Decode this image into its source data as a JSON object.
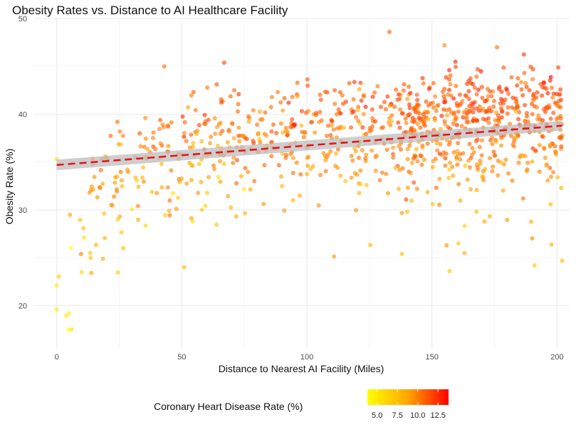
{
  "chart_data": {
    "type": "scatter",
    "title": "Obesity Rates vs. Distance to AI Healthcare Facility",
    "xlabel": "Distance to Nearest AI Facility (Miles)",
    "ylabel": "Obesity Rate (%)",
    "xlim": [
      -9,
      205
    ],
    "ylim": [
      15.5,
      50
    ],
    "xticks": [
      0,
      50,
      100,
      150,
      200
    ],
    "yticks": [
      20,
      30,
      40,
      50
    ],
    "grid": true,
    "color_legend": {
      "title": "Coronary Heart Disease Rate (%)",
      "position": "bottom",
      "range": [
        3.8,
        13.8
      ],
      "ticks": [
        "5.0",
        "7.5",
        "10.0",
        "12.5"
      ],
      "tick_values": [
        5.0,
        7.5,
        10.0,
        12.5
      ],
      "low_color": "#ffff00",
      "high_color": "#ff0000"
    },
    "trend_line": {
      "x": [
        0,
        202
      ],
      "y": [
        34.7,
        38.8
      ],
      "ci_halfwidth": [
        0.55,
        0.5
      ],
      "color": "#e8141a",
      "ci_color": "#bdbdbd",
      "style": "dashed"
    },
    "point_count": 1000,
    "points_note_sample": [
      {
        "x": 0,
        "y": 19.6,
        "c": 4.5
      },
      {
        "x": 0,
        "y": 22.1,
        "c": 4.6
      },
      {
        "x": 6,
        "y": 17.5,
        "c": 5.0
      },
      {
        "x": 43,
        "y": 45.0,
        "c": 9.5
      },
      {
        "x": 133,
        "y": 48.6,
        "c": 10.2
      },
      {
        "x": 155,
        "y": 47.2,
        "c": 8.5
      },
      {
        "x": 176,
        "y": 47.0,
        "c": 9.5
      },
      {
        "x": 163,
        "y": 25.5,
        "c": 7.0
      },
      {
        "x": 157,
        "y": 23.6,
        "c": 6.0
      },
      {
        "x": 51,
        "y": 24.0,
        "c": 6.5
      },
      {
        "x": 191,
        "y": 24.2,
        "c": 6.0
      },
      {
        "x": 202,
        "y": 24.7,
        "c": 6.5
      },
      {
        "x": 138,
        "y": 25.4,
        "c": 6.5
      },
      {
        "x": 10,
        "y": 23.5,
        "c": 5.5
      },
      {
        "x": 0,
        "y": 35.3,
        "c": 5.0
      }
    ]
  }
}
